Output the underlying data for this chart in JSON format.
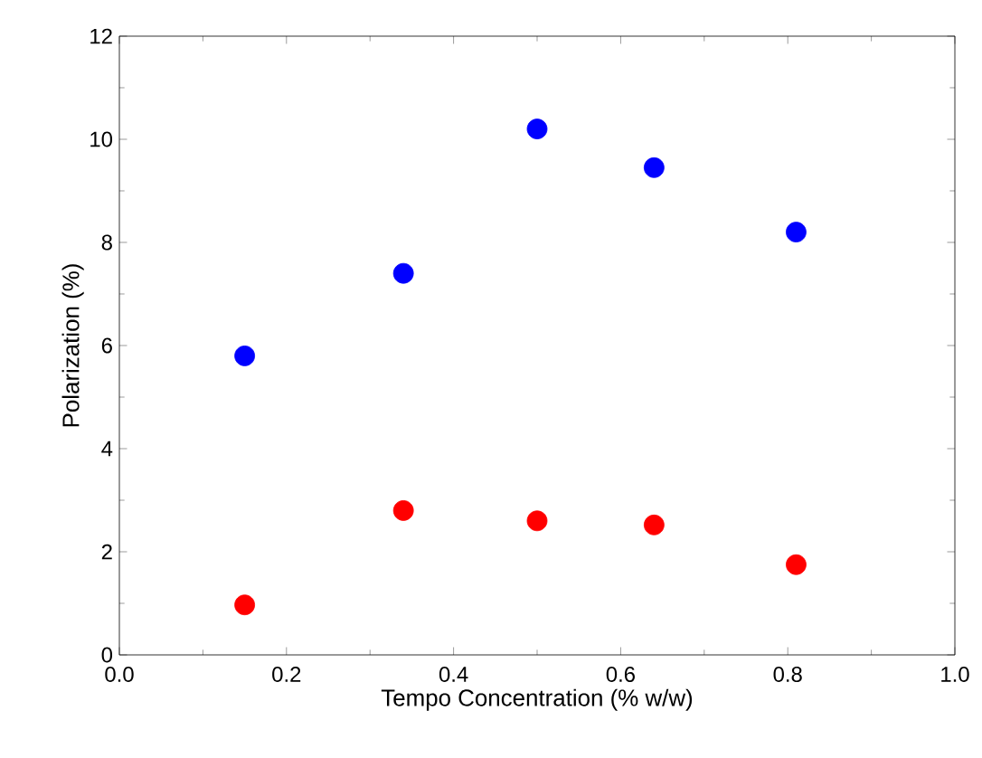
{
  "chart_data": {
    "type": "scatter",
    "xlabel": "Tempo Concentration (% w/w)",
    "ylabel": "Polarization (%)",
    "marker": "circle",
    "xlim": [
      0,
      1
    ],
    "ylim": [
      0,
      12
    ],
    "xticks": [
      {
        "value": 0,
        "label": "0.0"
      },
      {
        "value": 0.2,
        "label": "0.2"
      },
      {
        "value": 0.4,
        "label": "0.4"
      },
      {
        "value": 0.6,
        "label": "0.6"
      },
      {
        "value": 0.8,
        "label": "0.8"
      },
      {
        "value": 1,
        "label": "1.0"
      }
    ],
    "yticks": [
      0,
      2,
      4,
      6,
      8,
      10,
      12
    ],
    "series": [
      {
        "color": "#0000ff",
        "x": [
          0.15,
          0.34,
          0.5,
          0.64,
          0.81
        ],
        "values": [
          5.8,
          7.4,
          10.2,
          9.45,
          8.2
        ]
      },
      {
        "color": "#ff0000",
        "x": [
          0.15,
          0.34,
          0.5,
          0.64,
          0.81
        ],
        "values": [
          0.97,
          2.8,
          2.6,
          2.52,
          1.75
        ]
      }
    ]
  }
}
